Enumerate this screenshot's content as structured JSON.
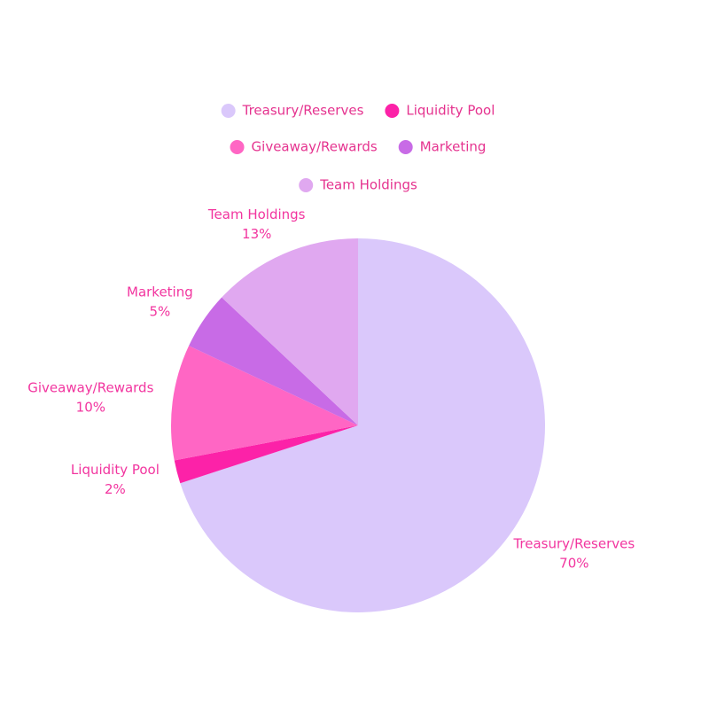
{
  "chart_data": {
    "type": "pie",
    "categories": [
      "Treasury/Reserves",
      "Liquidity Pool",
      "Giveaway/Rewards",
      "Marketing",
      "Team Holdings"
    ],
    "values": [
      70,
      2,
      10,
      5,
      13
    ],
    "value_labels": [
      "70%",
      "2%",
      "10%",
      "5%",
      "13%"
    ],
    "colors": [
      "#dac8fb",
      "#fc22a8",
      "#ff66c4",
      "#c86be6",
      "#e0a8f0"
    ],
    "legend": "top"
  }
}
